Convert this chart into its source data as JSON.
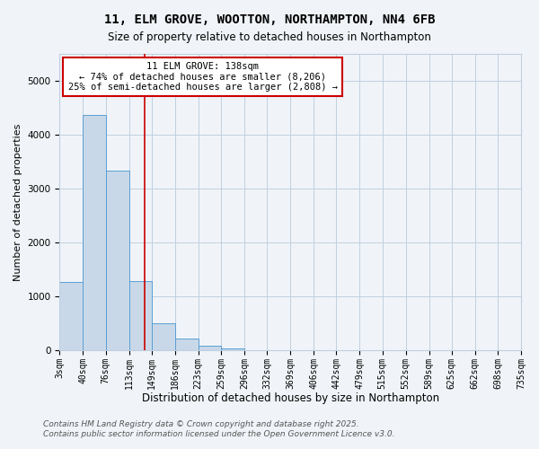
{
  "title": "11, ELM GROVE, WOOTTON, NORTHAMPTON, NN4 6FB",
  "subtitle": "Size of property relative to detached houses in Northampton",
  "xlabel": "Distribution of detached houses by size in Northampton",
  "ylabel": "Number of detached properties",
  "bin_edges": [
    3,
    40,
    76,
    113,
    149,
    186,
    223,
    259,
    296,
    332,
    369,
    406,
    442,
    479,
    515,
    552,
    589,
    625,
    662,
    698,
    735
  ],
  "bar_heights": [
    1260,
    4370,
    3330,
    1290,
    500,
    220,
    75,
    30,
    5,
    2,
    1,
    0,
    0,
    0,
    0,
    0,
    0,
    0,
    0,
    0
  ],
  "bar_color": "#c8d8e8",
  "bar_edgecolor": "#5a9fd4",
  "property_line_x": 138,
  "property_line_color": "#cc0000",
  "annotation_line1": "11 ELM GROVE: 138sqm",
  "annotation_line2": "← 74% of detached houses are smaller (8,206)",
  "annotation_line3": "25% of semi-detached houses are larger (2,808) →",
  "annotation_box_color": "#ffffff",
  "annotation_box_edgecolor": "#cc0000",
  "ylim": [
    0,
    5500
  ],
  "tick_labels": [
    "3sqm",
    "40sqm",
    "76sqm",
    "113sqm",
    "149sqm",
    "186sqm",
    "223sqm",
    "259sqm",
    "296sqm",
    "332sqm",
    "369sqm",
    "406sqm",
    "442sqm",
    "479sqm",
    "515sqm",
    "552sqm",
    "589sqm",
    "625sqm",
    "662sqm",
    "698sqm",
    "735sqm"
  ],
  "footnote1": "Contains HM Land Registry data © Crown copyright and database right 2025.",
  "footnote2": "Contains public sector information licensed under the Open Government Licence v3.0.",
  "background_color": "#f0f4f8",
  "grid_color": "#c0cfe0",
  "title_fontsize": 10,
  "subtitle_fontsize": 8.5,
  "ylabel_fontsize": 8,
  "xlabel_fontsize": 8.5,
  "tick_fontsize": 7,
  "annotation_fontsize": 7.5,
  "footnote_fontsize": 6.5
}
